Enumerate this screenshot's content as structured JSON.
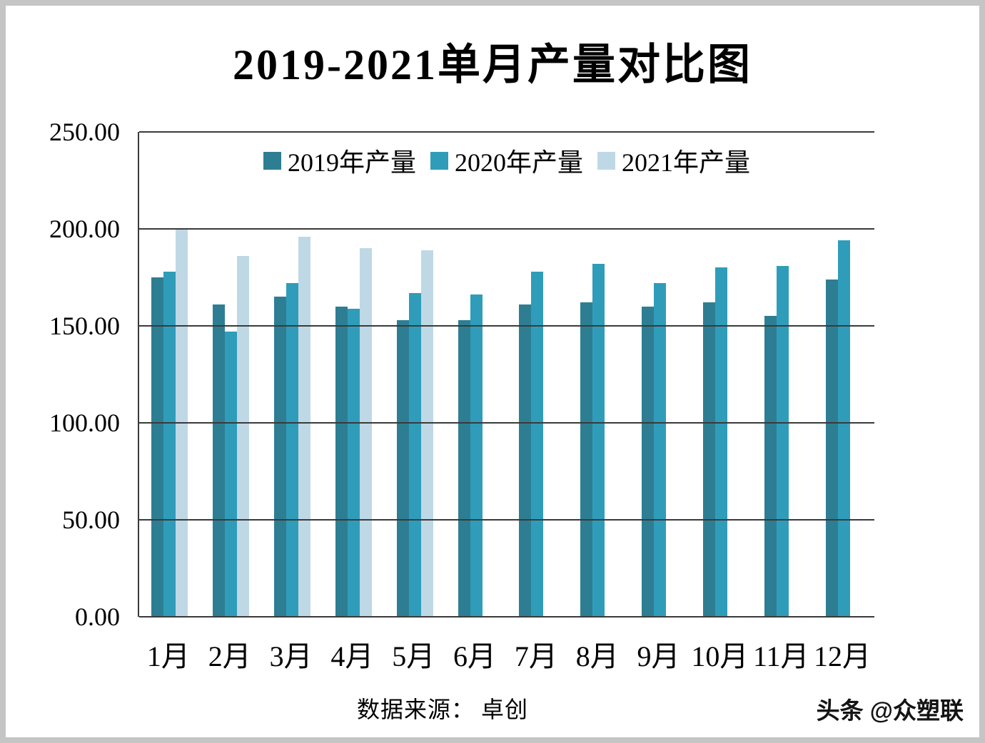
{
  "title": "2019-2021单月产量对比图",
  "source_note": "数据来源：  卓创",
  "watermark": "头条 @众塑联",
  "chart_data": {
    "type": "bar",
    "title": "2019-2021单月产量对比图",
    "categories": [
      "1月",
      "2月",
      "3月",
      "4月",
      "5月",
      "6月",
      "7月",
      "8月",
      "9月",
      "10月",
      "11月",
      "12月"
    ],
    "series": [
      {
        "name": "2019年产量",
        "color": "#2e7e93",
        "values": [
          175,
          161,
          165,
          160,
          153,
          153,
          161,
          162,
          160,
          162,
          155,
          174
        ]
      },
      {
        "name": "2020年产量",
        "color": "#2f9db9",
        "values": [
          178,
          147,
          172,
          159,
          167,
          166,
          178,
          182,
          172,
          180,
          181,
          194
        ]
      },
      {
        "name": "2021年产量",
        "color": "#bfd8e5",
        "values": [
          200,
          186,
          196,
          190,
          189,
          null,
          null,
          null,
          null,
          null,
          null,
          null
        ]
      }
    ],
    "ylim": [
      0,
      250
    ],
    "ytick_step": 50,
    "ytick_labels": [
      "0.00",
      "50.00",
      "100.00",
      "150.00",
      "200.00",
      "250.00"
    ],
    "grid": true,
    "legend_position": "top-inside",
    "gridline_color": "#3a3a3a"
  }
}
